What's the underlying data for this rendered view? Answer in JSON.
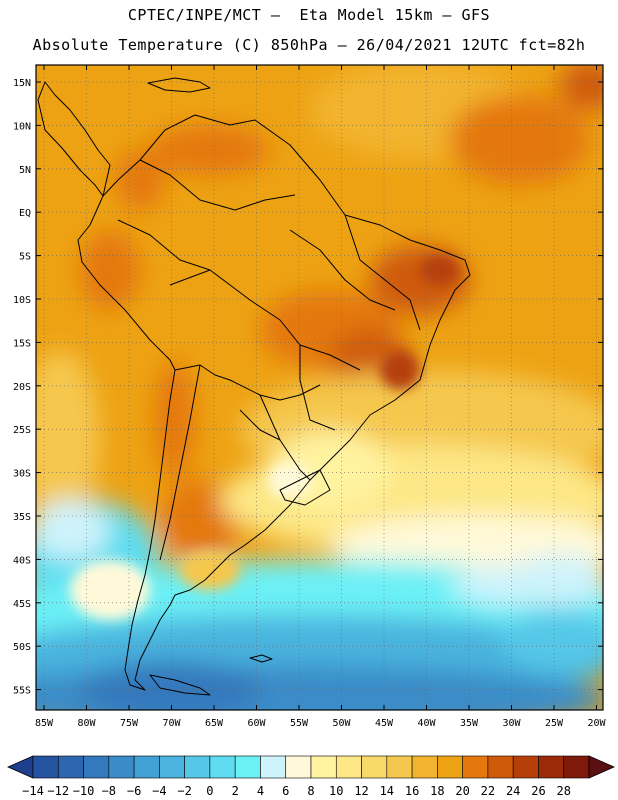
{
  "header": {
    "line1": "CPTEC/INPE/MCT –  Eta Model 15km – GFS",
    "line2": "Absolute Temperature (C) 850hPa – 26/04/2021 12UTC fct=82h"
  },
  "map": {
    "lat_labels": [
      "15N",
      "10N",
      "5N",
      "EQ",
      "5S",
      "10S",
      "15S",
      "20S",
      "25S",
      "30S",
      "35S",
      "40S",
      "45S",
      "50S",
      "55S"
    ],
    "lon_labels": [
      "85W",
      "80W",
      "75W",
      "70W",
      "65W",
      "60W",
      "55W",
      "50W",
      "45W",
      "40W",
      "35W",
      "30W",
      "25W",
      "20W"
    ]
  },
  "colorbar": {
    "labels": [
      "-14",
      "-12",
      "-10",
      "-8",
      "-6",
      "-4",
      "-2",
      "0",
      "2",
      "4",
      "6",
      "8",
      "10",
      "12",
      "14",
      "16",
      "18",
      "20",
      "22",
      "24",
      "26",
      "28"
    ],
    "colors": [
      "#1e3f8e",
      "#2653a0",
      "#2e66b0",
      "#3479bd",
      "#3a8cc8",
      "#41a0d4",
      "#4ab4de",
      "#55c8e8",
      "#5fdcef",
      "#6cf0f6",
      "#cdf3fb",
      "#fff9d9",
      "#fff3a0",
      "#fde786",
      "#f9d96a",
      "#f5c74e",
      "#f2b42e",
      "#eda213",
      "#e4780c",
      "#cf5a0a",
      "#b63f09",
      "#9a2a08",
      "#7d1a0b",
      "#5c0f12"
    ]
  }
}
